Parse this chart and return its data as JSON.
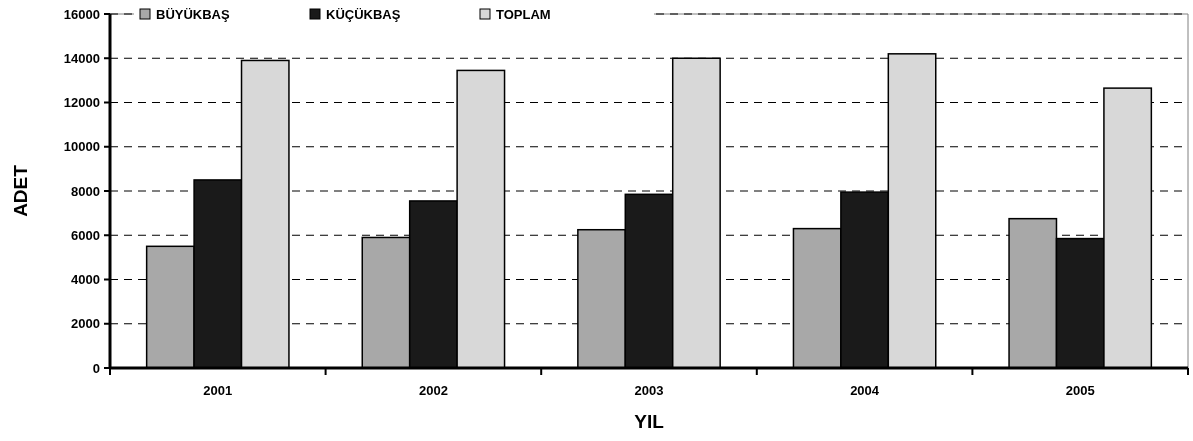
{
  "chart_data": {
    "type": "bar",
    "xlabel": "YIL",
    "ylabel": "ADET",
    "categories": [
      "2001",
      "2002",
      "2003",
      "2004",
      "2005"
    ],
    "series": [
      {
        "name": "BÜYÜKBAŞ",
        "color": "#a8a8a8",
        "values": [
          5500,
          5900,
          6250,
          6300,
          6750
        ]
      },
      {
        "name": "KÜÇÜKBAŞ",
        "color": "#1a1a1a",
        "values": [
          8500,
          7550,
          7850,
          7950,
          5850
        ]
      },
      {
        "name": "TOPLAM",
        "color": "#d8d8d8",
        "values": [
          13900,
          13450,
          14000,
          14200,
          12650
        ]
      }
    ],
    "ylim": [
      0,
      16000
    ],
    "yticks": [
      0,
      2000,
      4000,
      6000,
      8000,
      10000,
      12000,
      14000,
      16000
    ],
    "grid": "y",
    "legend": "top left"
  }
}
